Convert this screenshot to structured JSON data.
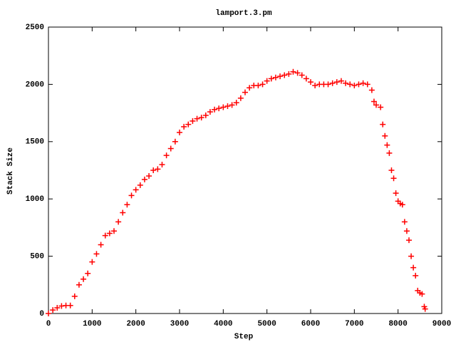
{
  "chart_data": {
    "type": "scatter",
    "title": "lamport.3.pm",
    "xlabel": "Step",
    "ylabel": "Stack Size",
    "series": [
      {
        "name": "lamport.3.pm",
        "color": "#ff0000",
        "x": [
          0,
          100,
          200,
          300,
          400,
          500,
          600,
          700,
          800,
          900,
          1000,
          1100,
          1200,
          1300,
          1400,
          1500,
          1600,
          1700,
          1800,
          1900,
          2000,
          2100,
          2200,
          2300,
          2400,
          2500,
          2600,
          2700,
          2800,
          2900,
          3000,
          3100,
          3200,
          3300,
          3400,
          3500,
          3600,
          3700,
          3800,
          3900,
          4000,
          4100,
          4200,
          4300,
          4400,
          4500,
          4600,
          4700,
          4800,
          4900,
          5000,
          5100,
          5200,
          5300,
          5400,
          5500,
          5600,
          5700,
          5800,
          5900,
          6000,
          6100,
          6200,
          6300,
          6400,
          6500,
          6600,
          6700,
          6800,
          6900,
          7000,
          7100,
          7200,
          7300,
          7400,
          7450,
          7500,
          7600,
          7650,
          7700,
          7750,
          7800,
          7850,
          7900,
          7950,
          8000,
          8050,
          8100,
          8150,
          8200,
          8250,
          8300,
          8350,
          8400,
          8450,
          8500,
          8550,
          8600,
          8620
        ],
        "values": [
          0,
          30,
          50,
          65,
          70,
          70,
          150,
          250,
          300,
          350,
          450,
          520,
          600,
          680,
          700,
          720,
          800,
          880,
          950,
          1030,
          1080,
          1120,
          1170,
          1200,
          1250,
          1260,
          1300,
          1380,
          1440,
          1500,
          1580,
          1630,
          1650,
          1680,
          1700,
          1710,
          1730,
          1760,
          1780,
          1790,
          1800,
          1810,
          1820,
          1840,
          1880,
          1930,
          1970,
          1990,
          1990,
          2000,
          2030,
          2050,
          2060,
          2070,
          2080,
          2090,
          2110,
          2100,
          2080,
          2050,
          2020,
          1990,
          2000,
          2000,
          2000,
          2010,
          2020,
          2030,
          2010,
          2000,
          1990,
          2000,
          2010,
          2000,
          1950,
          1850,
          1820,
          1800,
          1650,
          1550,
          1470,
          1400,
          1250,
          1180,
          1050,
          980,
          960,
          950,
          800,
          720,
          640,
          500,
          400,
          330,
          200,
          180,
          170,
          60,
          40
        ]
      }
    ],
    "xlim": [
      0,
      9000
    ],
    "xticks": [
      0,
      1000,
      2000,
      3000,
      4000,
      5000,
      6000,
      7000,
      8000,
      9000
    ],
    "ylim": [
      0,
      2500
    ],
    "yticks": [
      0,
      500,
      1000,
      1500,
      2000,
      2500
    ],
    "grid": false
  }
}
